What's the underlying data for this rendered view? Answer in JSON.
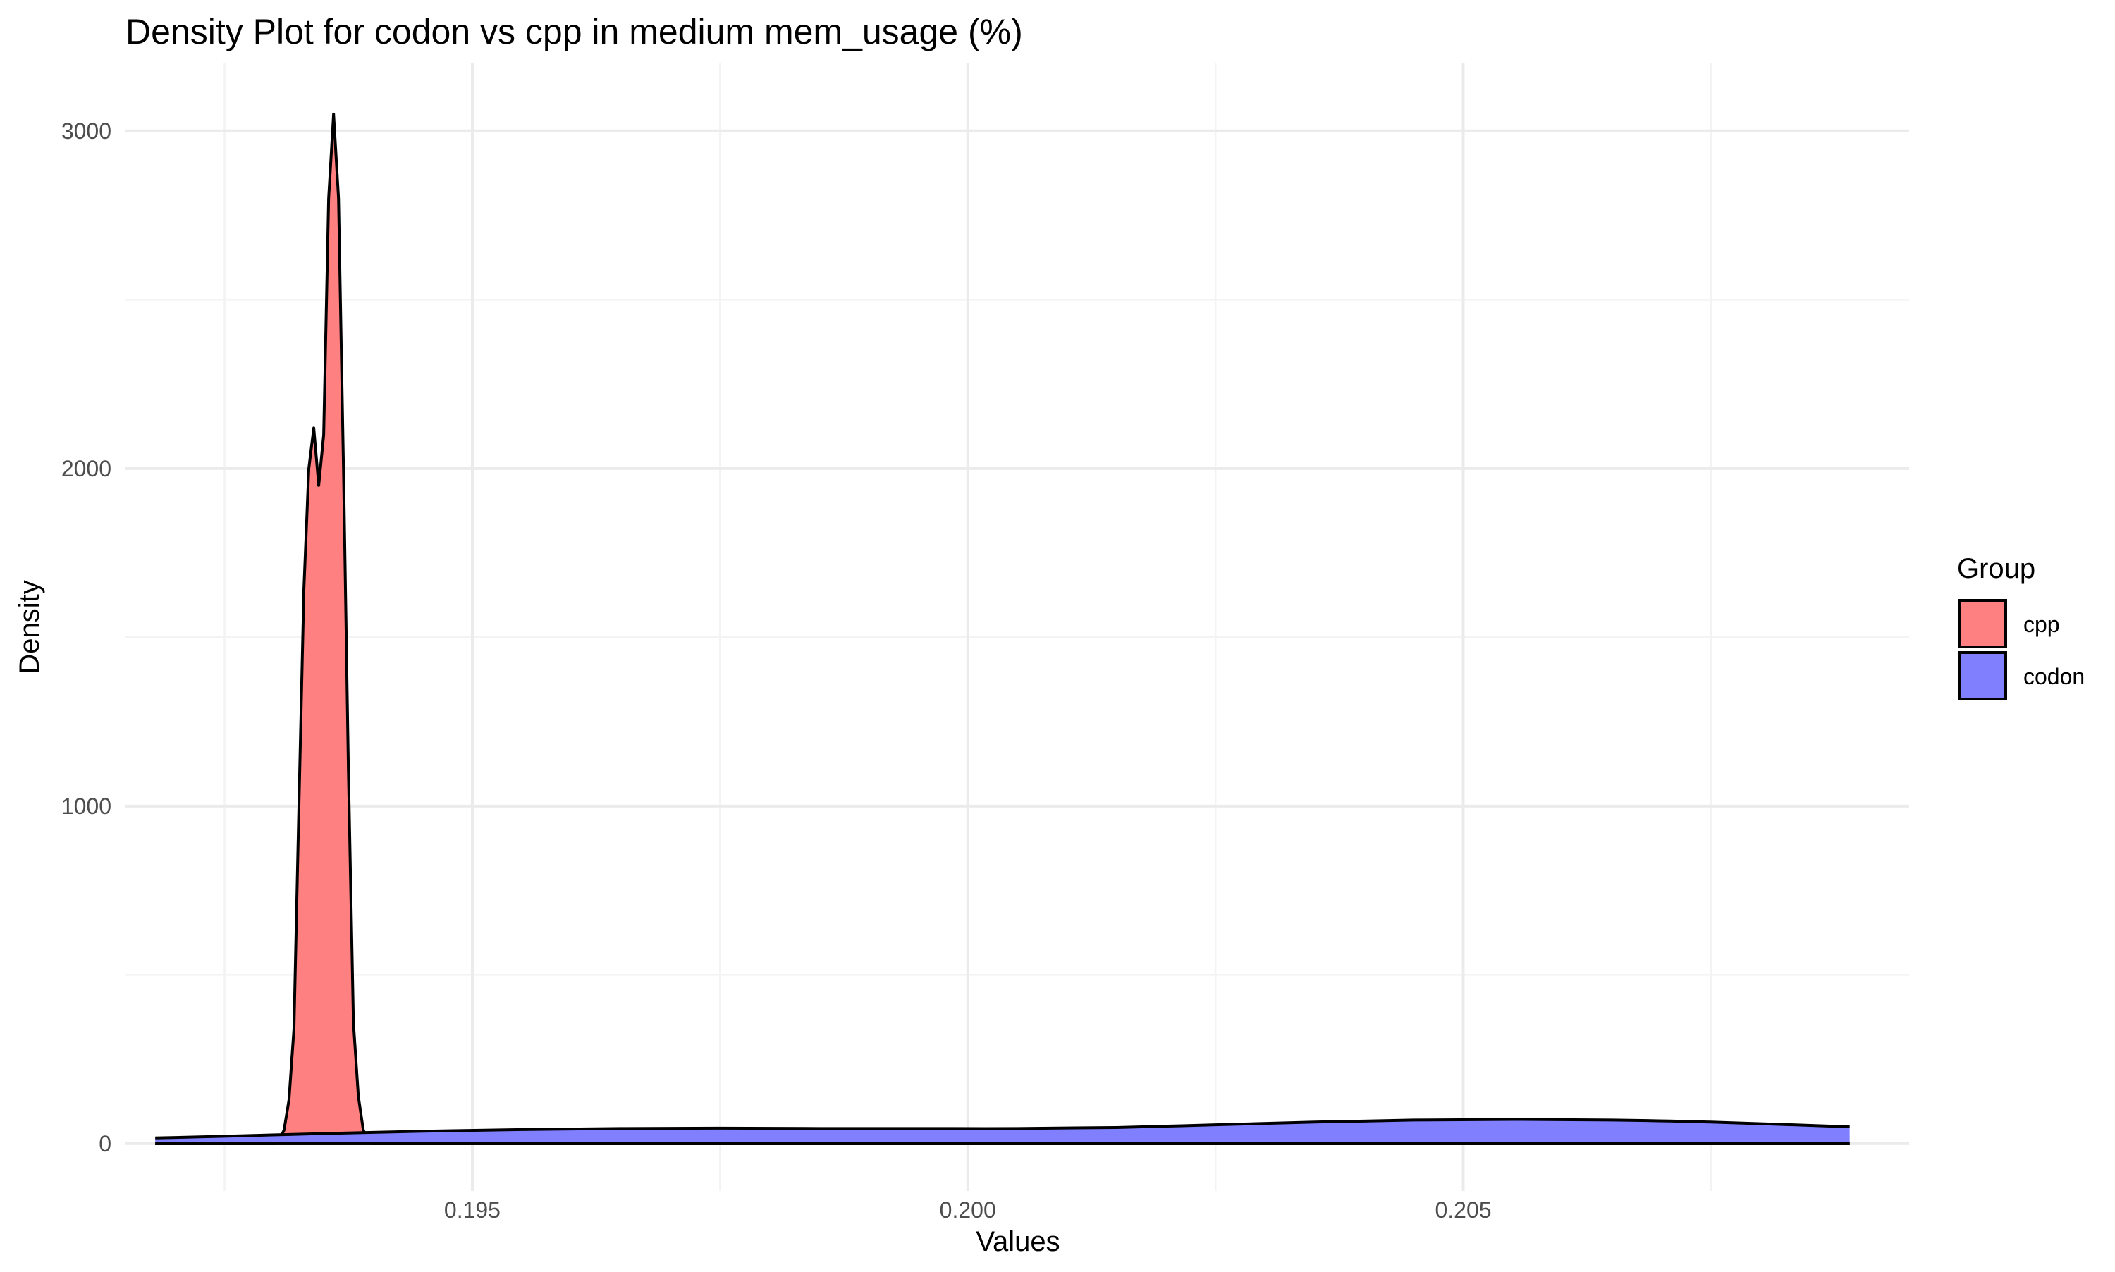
{
  "chart_data": {
    "type": "area",
    "subtype": "density",
    "title": "Density Plot for codon vs cpp in medium mem_usage (%)",
    "xlabel": "Values",
    "ylabel": "Density",
    "xlim": [
      0.1915,
      0.2095
    ],
    "ylim": [
      -140,
      3200
    ],
    "x_ticks": [
      0.195,
      0.2,
      0.205
    ],
    "x_tick_labels": [
      "0.195",
      "0.200",
      "0.205"
    ],
    "y_ticks": [
      0,
      1000,
      2000,
      3000
    ],
    "y_tick_labels": [
      "0",
      "1000",
      "2000",
      "3000"
    ],
    "grid": true,
    "legend": {
      "title": "Group",
      "position": "right",
      "entries": [
        {
          "label": "cpp",
          "color": "#ff8080"
        },
        {
          "label": "codon",
          "color": "#8080ff"
        }
      ]
    },
    "series": [
      {
        "name": "cpp",
        "color": "#ff8080",
        "x": [
          0.1918,
          0.193,
          0.19305,
          0.1931,
          0.19315,
          0.1932,
          0.19325,
          0.1933,
          0.19335,
          0.1934,
          0.19345,
          0.1935,
          0.19355,
          0.1936,
          0.19365,
          0.1937,
          0.19375,
          0.1938,
          0.19385,
          0.1939,
          0.19395,
          0.194,
          0.195,
          0.2089
        ],
        "values": [
          0,
          0,
          10,
          40,
          130,
          340,
          1000,
          1640,
          2000,
          2120,
          1950,
          2100,
          2800,
          3050,
          2800,
          2000,
          1100,
          360,
          140,
          40,
          10,
          0,
          0,
          0
        ]
      },
      {
        "name": "codon",
        "color": "#8080ff",
        "x": [
          0.1918,
          0.1925,
          0.1935,
          0.1945,
          0.1955,
          0.1965,
          0.1975,
          0.1985,
          0.1995,
          0.2005,
          0.2015,
          0.2025,
          0.2035,
          0.2045,
          0.2055,
          0.2065,
          0.2075,
          0.2089
        ],
        "values": [
          17,
          22,
          30,
          37,
          42,
          45,
          46,
          45,
          45,
          45,
          48,
          56,
          64,
          70,
          72,
          70,
          64,
          50
        ]
      }
    ]
  }
}
